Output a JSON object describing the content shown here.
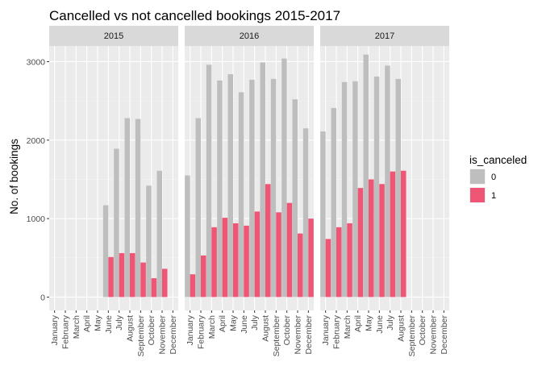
{
  "chart_data": {
    "type": "bar",
    "title": "Cancelled vs not cancelled bookings 2015-2017",
    "xlabel": "",
    "ylabel": "No. of bookings",
    "ylim": [
      -170,
      3200
    ],
    "yticks": [
      0,
      1000,
      2000,
      3000
    ],
    "categories": [
      "January",
      "February",
      "March",
      "April",
      "May",
      "June",
      "July",
      "August",
      "September",
      "October",
      "November",
      "December"
    ],
    "legend": {
      "title": "is_canceled",
      "placement": "right",
      "entries": [
        {
          "label": "0",
          "color": "#bebebe"
        },
        {
          "label": "1",
          "color": "#ef5675"
        }
      ]
    },
    "panels": [
      {
        "facet": "2015",
        "series": [
          {
            "name": "0",
            "values": [
              null,
              null,
              null,
              null,
              null,
              1170,
              1890,
              2280,
              2270,
              1420,
              1610,
              null
            ]
          },
          {
            "name": "1",
            "values": [
              null,
              null,
              null,
              null,
              null,
              510,
              560,
              560,
              440,
              240,
              360,
              null
            ]
          }
        ]
      },
      {
        "facet": "2016",
        "series": [
          {
            "name": "0",
            "values": [
              1550,
              2280,
              2960,
              2760,
              2840,
              2610,
              2770,
              2990,
              2780,
              3040,
              2520,
              2150
            ]
          },
          {
            "name": "1",
            "values": [
              290,
              530,
              890,
              1010,
              940,
              910,
              1090,
              1440,
              1080,
              1200,
              810,
              1000
            ]
          }
        ]
      },
      {
        "facet": "2017",
        "series": [
          {
            "name": "0",
            "values": [
              2110,
              2410,
              2740,
              2750,
              3090,
              2810,
              2950,
              2780,
              null,
              null,
              null,
              null
            ]
          },
          {
            "name": "1",
            "values": [
              740,
              890,
              940,
              1390,
              1500,
              1440,
              1600,
              1610,
              null,
              null,
              null,
              null
            ]
          }
        ]
      }
    ]
  }
}
